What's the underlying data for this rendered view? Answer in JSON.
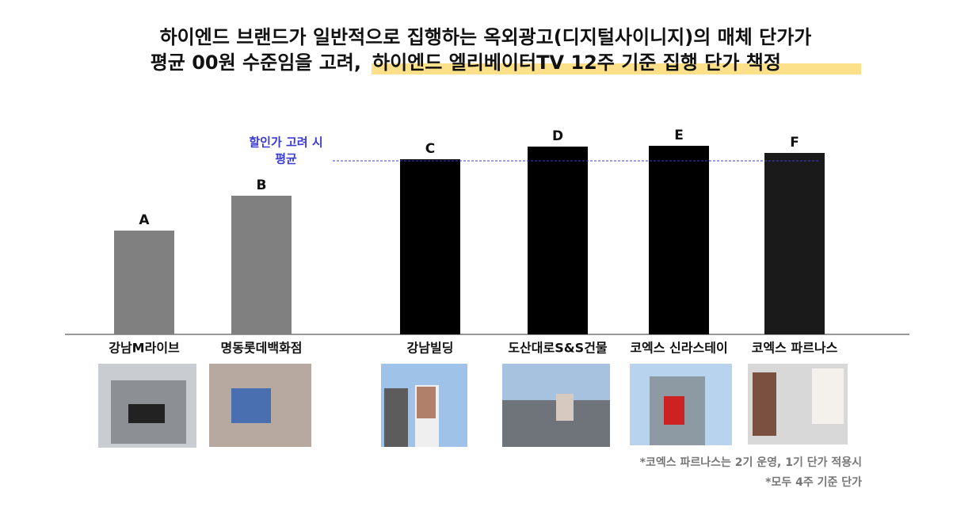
{
  "chart_data": {
    "type": "bar",
    "title_lines": [
      "하이엔드 브랜드가 일반적으로 집행하는 옥외광고(디지털사이니지)의 매체 단가가",
      "평균 00원 수준임을 고려,",
      "하이엔드 엘리베이터TV 12주 기준 집행 단가 책정"
    ],
    "categories": [
      "강남M라이브",
      "명동롯데백화점",
      "강남빌딩",
      "도산대로S&S건물",
      "코엑스 신라스테이",
      "코엑스 파르나스"
    ],
    "bar_labels": [
      "A",
      "B",
      "C",
      "D",
      "E",
      "F"
    ],
    "values": [
      131,
      175,
      221,
      237,
      238,
      229
    ],
    "colors": [
      "#808080",
      "#808080",
      "#000000",
      "#000000",
      "#000000",
      "#1a1a1a"
    ],
    "ylim": [
      0,
      260
    ],
    "reference_line": {
      "value": 219,
      "label_lines": [
        "할인가 고려 시",
        "평균"
      ],
      "color": "#3b3bd6"
    },
    "notes": [
      "*코엑스 파르나스는 2기 운영, 1기 단가 적용시",
      "*모두 4주 기준 단가"
    ]
  }
}
